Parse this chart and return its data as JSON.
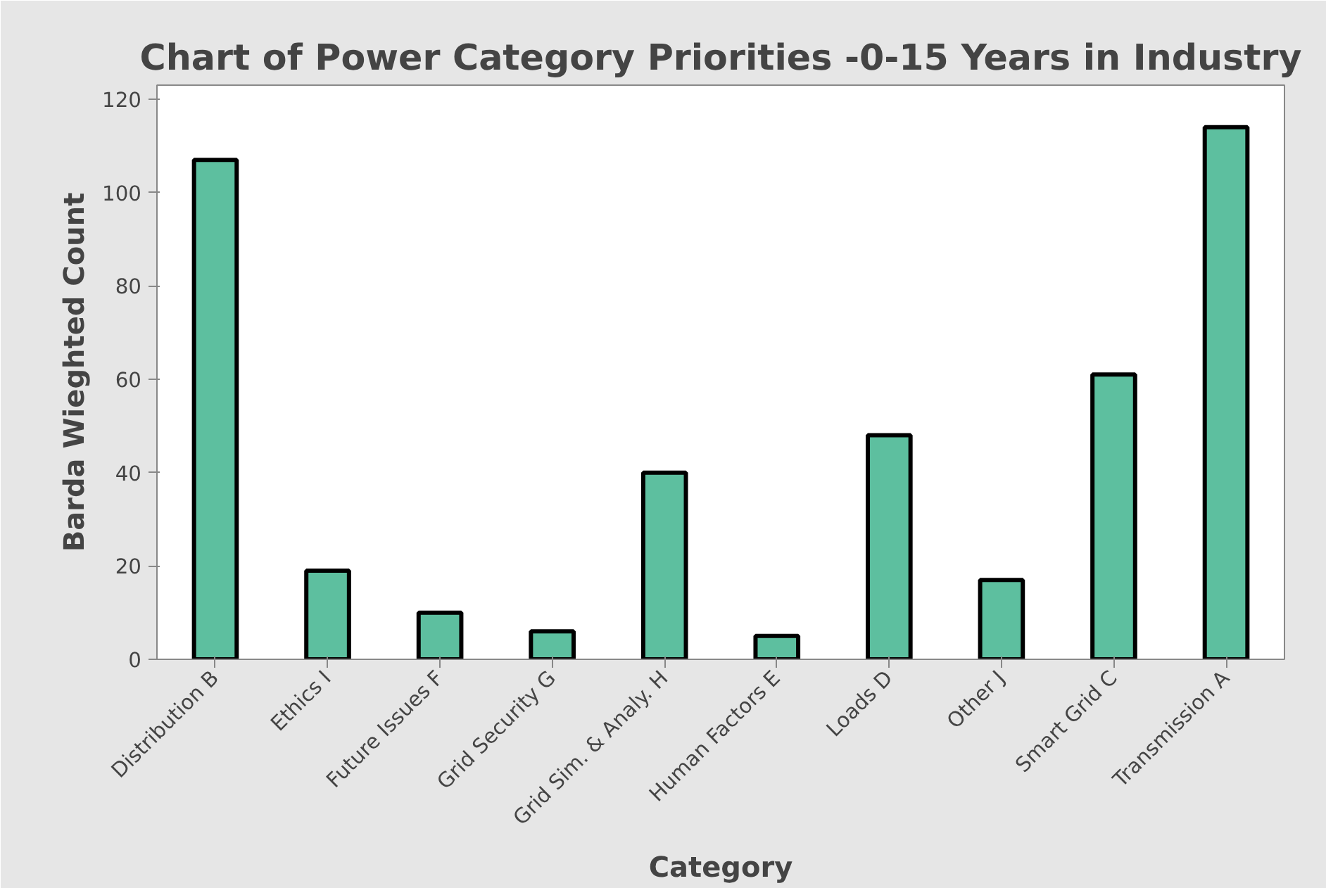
{
  "chart_data": {
    "type": "bar",
    "title": "Chart of Power Category Priorities -0-15 Years in Industry",
    "xlabel": "Category",
    "ylabel": "Barda Wieghted Count",
    "categories": [
      "Distribution B",
      "Ethics I",
      "Future Issues F",
      "Grid Security G",
      "Grid Sim. & Analy. H",
      "Human Factors E",
      "Loads D",
      "Other J",
      "Smart Grid C",
      "Transmission A"
    ],
    "values": [
      107,
      19,
      10,
      6,
      40,
      5,
      48,
      17,
      61,
      114
    ],
    "color": "#5dbf9f",
    "ylim": [
      0,
      123
    ],
    "yticks": [
      0,
      20,
      40,
      60,
      80,
      100,
      120
    ],
    "grid": false
  }
}
